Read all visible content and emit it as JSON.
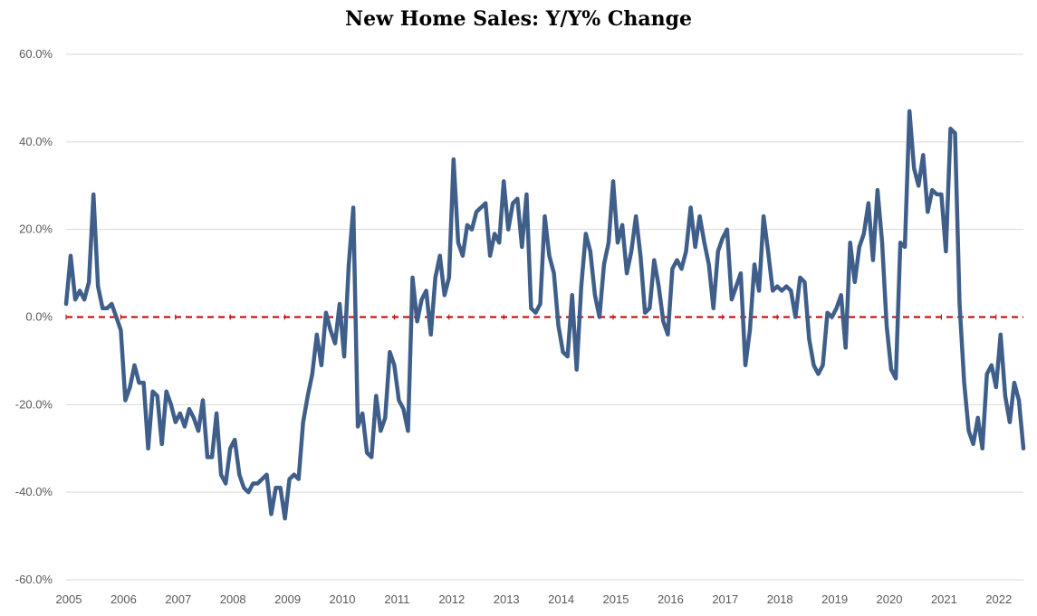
{
  "colors": {
    "series_line": "#3f5f8a",
    "zero_line": "#c00000",
    "gridline": "#d9d9d9"
  },
  "chart_data": {
    "type": "line",
    "title": "New Home Sales: Y/Y% Change",
    "xlabel": "",
    "ylabel": "",
    "ylim": [
      -60,
      60
    ],
    "y_ticks": [
      {
        "value": 60,
        "label": "60.0%"
      },
      {
        "value": 40,
        "label": "40.0%"
      },
      {
        "value": 20,
        "label": "20.0%"
      },
      {
        "value": 0,
        "label": "0.0%"
      },
      {
        "value": -20,
        "label": "-20.0%"
      },
      {
        "value": -40,
        "label": "-40.0%"
      },
      {
        "value": -60,
        "label": "-60.0%"
      }
    ],
    "x_ticks": [
      "2005",
      "2006",
      "2007",
      "2008",
      "2009",
      "2010",
      "2011",
      "2012",
      "2013",
      "2014",
      "2015",
      "2016",
      "2017",
      "2018",
      "2019",
      "2020",
      "2021",
      "2022"
    ],
    "xlim": [
      "2005-01",
      "2022-07"
    ],
    "grid": true,
    "reference_line": {
      "y": 0,
      "style": "dashed",
      "color": "#c00000"
    },
    "series": [
      {
        "start_month": "2005-01",
        "frequency": "monthly",
        "values": [
          3,
          14,
          4,
          6,
          4,
          8,
          28,
          7,
          2,
          2,
          3,
          0,
          -3,
          -19,
          -16,
          -11,
          -15,
          -15,
          -30,
          -17,
          -18,
          -29,
          -17,
          -20,
          -24,
          -22,
          -25,
          -21,
          -23,
          -26,
          -19,
          -32,
          -32,
          -22,
          -36,
          -38,
          -30,
          -28,
          -36,
          -39,
          -40,
          -38,
          -38,
          -37,
          -36,
          -45,
          -39,
          -39,
          -46,
          -37,
          -36,
          -37,
          -24,
          -18,
          -13,
          -4,
          -11,
          1,
          -3,
          -6,
          3,
          -9,
          12,
          25,
          -25,
          -22,
          -31,
          -32,
          -18,
          -26,
          -23,
          -8,
          -11,
          -19,
          -21,
          -26,
          9,
          -1,
          4,
          6,
          -4,
          9,
          14,
          5,
          9,
          36,
          17,
          14,
          21,
          20,
          24,
          25,
          26,
          14,
          19,
          17,
          31,
          20,
          26,
          27,
          16,
          28,
          2,
          1,
          3,
          23,
          14,
          10,
          -2,
          -8,
          -9,
          5,
          -12,
          7,
          19,
          15,
          5,
          0,
          12,
          17,
          31,
          17,
          21,
          10,
          15,
          23,
          14,
          1,
          2,
          13,
          7,
          -1,
          -4,
          11,
          13,
          11,
          15,
          25,
          16,
          23,
          17,
          12,
          2,
          15,
          18,
          20,
          4,
          7,
          10,
          -11,
          -3,
          12,
          6,
          23,
          15,
          6,
          7,
          6,
          7,
          6,
          0,
          9,
          8,
          -5,
          -11,
          -13,
          -11,
          1,
          0,
          2,
          5,
          -7,
          17,
          8,
          16,
          19,
          26,
          13,
          29,
          17,
          -2,
          -12,
          -14,
          17,
          16,
          47,
          34,
          30,
          37,
          24,
          29,
          28,
          28,
          15,
          43,
          42,
          3,
          -15,
          -26,
          -29,
          -23,
          -30,
          -13,
          -11,
          -16,
          -4,
          -18,
          -24,
          -15,
          -19,
          -30
        ]
      }
    ]
  }
}
